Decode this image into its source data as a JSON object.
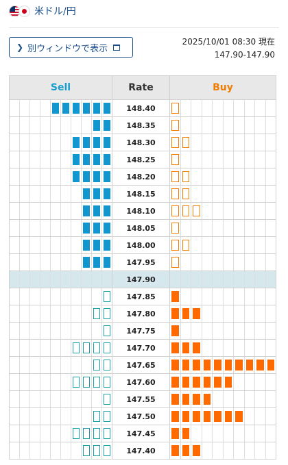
{
  "header": {
    "pair": "米ドル/円"
  },
  "window_button": {
    "label": "別ウィンドウで表示"
  },
  "meta": {
    "datetime": "2025/10/01 08:30 現在",
    "bid_ask": "147.90-147.90"
  },
  "colors": {
    "sell": "#1196cf",
    "buy": "#ff6a00"
  },
  "book": {
    "columns": {
      "sell": "Sell",
      "rate": "Rate",
      "buy": "Buy"
    },
    "max_cells": 10,
    "current_rate": "147.90",
    "rows": [
      {
        "rate": "148.40",
        "sell": 6,
        "sell_style": "filled",
        "buy": 1,
        "buy_style": "outline"
      },
      {
        "rate": "148.35",
        "sell": 2,
        "sell_style": "filled",
        "buy": 1,
        "buy_style": "outline"
      },
      {
        "rate": "148.30",
        "sell": 4,
        "sell_style": "filled",
        "buy": 2,
        "buy_style": "outline"
      },
      {
        "rate": "148.25",
        "sell": 4,
        "sell_style": "filled",
        "buy": 1,
        "buy_style": "outline"
      },
      {
        "rate": "148.20",
        "sell": 4,
        "sell_style": "filled",
        "buy": 2,
        "buy_style": "outline"
      },
      {
        "rate": "148.15",
        "sell": 3,
        "sell_style": "filled",
        "buy": 2,
        "buy_style": "outline"
      },
      {
        "rate": "148.10",
        "sell": 3,
        "sell_style": "filled",
        "buy": 3,
        "buy_style": "outline"
      },
      {
        "rate": "148.05",
        "sell": 3,
        "sell_style": "filled",
        "buy": 1,
        "buy_style": "outline"
      },
      {
        "rate": "148.00",
        "sell": 3,
        "sell_style": "filled",
        "buy": 2,
        "buy_style": "outline"
      },
      {
        "rate": "147.95",
        "sell": 3,
        "sell_style": "filled",
        "buy": 1,
        "buy_style": "outline"
      },
      {
        "rate": "147.90",
        "sell": 0,
        "sell_style": "filled",
        "buy": 0,
        "buy_style": "filled",
        "current": true
      },
      {
        "rate": "147.85",
        "sell": 1,
        "sell_style": "outline",
        "buy": 1,
        "buy_style": "filled"
      },
      {
        "rate": "147.80",
        "sell": 2,
        "sell_style": "outline",
        "buy": 3,
        "buy_style": "filled"
      },
      {
        "rate": "147.75",
        "sell": 1,
        "sell_style": "outline",
        "buy": 1,
        "buy_style": "filled"
      },
      {
        "rate": "147.70",
        "sell": 4,
        "sell_style": "outline",
        "buy": 3,
        "buy_style": "filled"
      },
      {
        "rate": "147.65",
        "sell": 2,
        "sell_style": "outline",
        "buy": 10,
        "buy_style": "filled"
      },
      {
        "rate": "147.60",
        "sell": 4,
        "sell_style": "outline",
        "buy": 6,
        "buy_style": "filled"
      },
      {
        "rate": "147.55",
        "sell": 1,
        "sell_style": "outline",
        "buy": 4,
        "buy_style": "filled"
      },
      {
        "rate": "147.50",
        "sell": 2,
        "sell_style": "outline",
        "buy": 7,
        "buy_style": "filled"
      },
      {
        "rate": "147.45",
        "sell": 4,
        "sell_style": "outline",
        "buy": 2,
        "buy_style": "filled"
      },
      {
        "rate": "147.40",
        "sell": 3,
        "sell_style": "outline",
        "buy": 3,
        "buy_style": "filled"
      }
    ]
  }
}
